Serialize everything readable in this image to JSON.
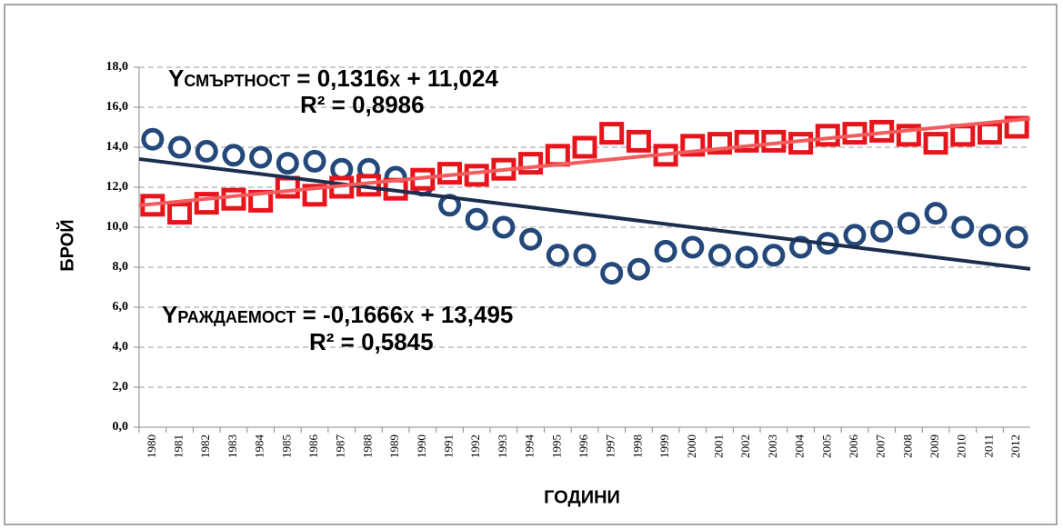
{
  "chart_data": {
    "type": "line",
    "x_label": "ГОДИНИ",
    "y_label": "БРОЙ",
    "categories": [
      "1980",
      "1981",
      "1982",
      "1983",
      "1984",
      "1985",
      "1986",
      "1987",
      "1988",
      "1989",
      "1990",
      "1991",
      "1992",
      "1993",
      "1994",
      "1995",
      "1996",
      "1997",
      "1998",
      "1999",
      "2000",
      "2001",
      "2002",
      "2003",
      "2004",
      "2005",
      "2006",
      "2007",
      "2008",
      "2009",
      "2010",
      "2011",
      "2012"
    ],
    "series": [
      {
        "color": "#24487a",
        "marker": "circle",
        "values": [
          14.4,
          14.0,
          13.8,
          13.6,
          13.5,
          13.2,
          13.3,
          12.9,
          12.9,
          12.5,
          12.1,
          11.1,
          10.4,
          10.0,
          9.4,
          8.6,
          8.6,
          7.7,
          7.9,
          8.8,
          9.0,
          8.6,
          8.5,
          8.6,
          9.0,
          9.2,
          9.6,
          9.8,
          10.2,
          10.7,
          10.0,
          9.6,
          9.5
        ],
        "trend": {
          "color": "#1b2e4e",
          "slope": -0.1666,
          "intercept": 13.495,
          "equation": "Yраждаемост = -0,1666x + 13,495",
          "r2": 0.5845,
          "r2_label": "R² = 0,5845"
        }
      },
      {
        "color": "#e8141c",
        "marker": "square",
        "values": [
          11.1,
          10.7,
          11.2,
          11.4,
          11.3,
          12.0,
          11.6,
          12.0,
          12.1,
          11.9,
          12.4,
          12.7,
          12.6,
          12.9,
          13.2,
          13.6,
          14.0,
          14.7,
          14.3,
          13.6,
          14.1,
          14.2,
          14.3,
          14.3,
          14.2,
          14.6,
          14.7,
          14.8,
          14.6,
          14.2,
          14.6,
          14.7,
          15.0
        ],
        "trend": {
          "color": "#f25c5c",
          "slope": 0.1316,
          "intercept": 11.024,
          "equation": "Yсмъртност = 0,1316x + 11,024",
          "r2": 0.8986,
          "r2_label": "R² = 0,8986"
        }
      }
    ],
    "ylim": [
      0,
      18
    ],
    "yticks": [
      {
        "value": 0,
        "label": "0,0"
      },
      {
        "value": 2,
        "label": "2,0"
      },
      {
        "value": 4,
        "label": "4,0"
      },
      {
        "value": 6,
        "label": "6,0"
      },
      {
        "value": 8,
        "label": "8,0"
      },
      {
        "value": 10,
        "label": "10,0"
      },
      {
        "value": 12,
        "label": "12,0"
      },
      {
        "value": 14,
        "label": "14,0"
      },
      {
        "value": 16,
        "label": "16,0"
      },
      {
        "value": 18,
        "label": "18,0"
      }
    ],
    "grid": true
  }
}
